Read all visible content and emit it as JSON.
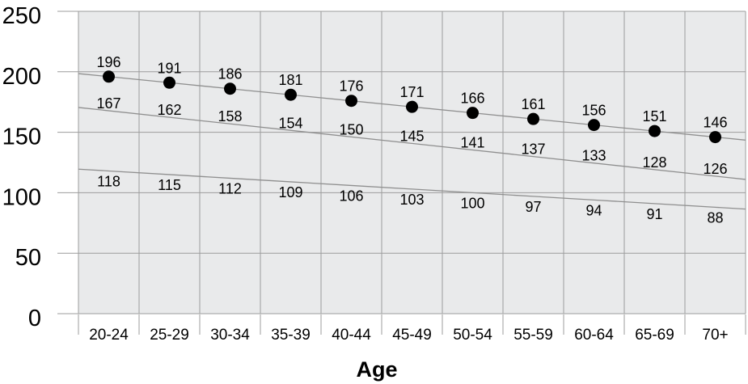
{
  "chart_data": {
    "type": "line",
    "xlabel": "Age",
    "categories": [
      "20-24",
      "25-29",
      "30-34",
      "35-39",
      "40-44",
      "45-49",
      "50-54",
      "55-59",
      "60-64",
      "65-69",
      "70+"
    ],
    "ylim": [
      0,
      250
    ],
    "yticks": [
      0,
      50,
      100,
      150,
      200,
      250
    ],
    "grid": true,
    "legend": false,
    "series": [
      {
        "name": "top-dotted-series",
        "marker": "filled-circle",
        "labels_position": "above",
        "values": [
          196,
          191,
          186,
          181,
          176,
          171,
          166,
          161,
          156,
          151,
          146
        ]
      },
      {
        "name": "middle-line-series",
        "marker": "none",
        "labels_position": "above",
        "values": [
          167,
          162,
          158,
          154,
          150,
          145,
          141,
          137,
          133,
          128,
          126
        ],
        "drawn_line_edge_values": [
          170.5,
          111
        ]
      },
      {
        "name": "bottom-line-series",
        "marker": "none",
        "labels_position": "below",
        "values": [
          118,
          115,
          112,
          109,
          106,
          103,
          100,
          97,
          94,
          91,
          88
        ]
      }
    ],
    "colors": {
      "plot_background": "#e9eaeb",
      "gridlines": "#9c9c9c",
      "series_lines": "#8f8f8f",
      "markers": "#000000",
      "text": "#000000"
    }
  }
}
